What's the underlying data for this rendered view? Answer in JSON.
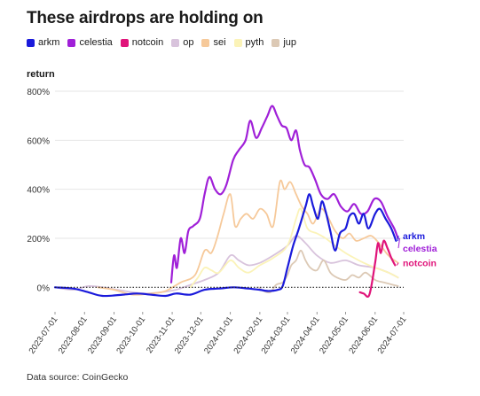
{
  "title": "These airdrops are holding on",
  "ylabel": "return",
  "source": "Data source: CoinGecko",
  "colors": {
    "arkm": "#1a1adb",
    "celestia": "#a020d8",
    "notcoin": "#e0147a",
    "op": "#d8c3dc",
    "sei": "#f6c99a",
    "pyth": "#fbf3b8",
    "jup": "#dcc9b5"
  },
  "legend": [
    {
      "key": "arkm",
      "label": "arkm"
    },
    {
      "key": "celestia",
      "label": "celestia"
    },
    {
      "key": "notcoin",
      "label": "notcoin"
    },
    {
      "key": "op",
      "label": "op"
    },
    {
      "key": "sei",
      "label": "sei"
    },
    {
      "key": "pyth",
      "label": "pyth"
    },
    {
      "key": "jup",
      "label": "jup"
    }
  ],
  "chart_data": {
    "type": "line",
    "title": "These airdrops are holding on",
    "xlabel": "",
    "ylabel": "return",
    "ylim": [
      -100,
      800
    ],
    "yticks": [
      0,
      200,
      400,
      600,
      800
    ],
    "ytick_labels": [
      "0%",
      "200%",
      "400%",
      "600%",
      "800%"
    ],
    "xticks": [
      "2023-07-01",
      "2023-08-01",
      "2023-09-01",
      "2023-10-01",
      "2023-11-01",
      "2023-12-01",
      "2024-01-01",
      "2024-02-01",
      "2024-03-01",
      "2024-04-01",
      "2024-05-01",
      "2024-06-01",
      "2024-07-01"
    ],
    "series": [
      {
        "name": "arkm",
        "end_label": "arkm",
        "points": [
          [
            "2023-07-01",
            0
          ],
          [
            "2023-07-20",
            -5
          ],
          [
            "2023-08-05",
            -20
          ],
          [
            "2023-08-20",
            -35
          ],
          [
            "2023-09-10",
            -30
          ],
          [
            "2023-09-25",
            -25
          ],
          [
            "2023-10-10",
            -30
          ],
          [
            "2023-10-25",
            -35
          ],
          [
            "2023-11-05",
            -25
          ],
          [
            "2023-11-20",
            -30
          ],
          [
            "2023-12-05",
            -10
          ],
          [
            "2023-12-20",
            -5
          ],
          [
            "2024-01-05",
            0
          ],
          [
            "2024-01-20",
            -5
          ],
          [
            "2024-02-01",
            -10
          ],
          [
            "2024-02-10",
            -15
          ],
          [
            "2024-02-20",
            -10
          ],
          [
            "2024-02-25",
            5
          ],
          [
            "2024-03-01",
            80
          ],
          [
            "2024-03-07",
            170
          ],
          [
            "2024-03-13",
            240
          ],
          [
            "2024-03-20",
            330
          ],
          [
            "2024-03-24",
            380
          ],
          [
            "2024-03-28",
            330
          ],
          [
            "2024-04-02",
            280
          ],
          [
            "2024-04-06",
            350
          ],
          [
            "2024-04-10",
            310
          ],
          [
            "2024-04-15",
            230
          ],
          [
            "2024-04-20",
            150
          ],
          [
            "2024-04-25",
            220
          ],
          [
            "2024-05-01",
            240
          ],
          [
            "2024-05-05",
            290
          ],
          [
            "2024-05-10",
            300
          ],
          [
            "2024-05-15",
            260
          ],
          [
            "2024-05-20",
            300
          ],
          [
            "2024-05-25",
            240
          ],
          [
            "2024-06-01",
            300
          ],
          [
            "2024-06-06",
            320
          ],
          [
            "2024-06-12",
            280
          ],
          [
            "2024-06-18",
            240
          ],
          [
            "2024-06-23",
            190
          ]
        ]
      },
      {
        "name": "celestia",
        "end_label": "celestia",
        "points": [
          [
            "2023-10-31",
            20
          ],
          [
            "2023-11-03",
            130
          ],
          [
            "2023-11-06",
            80
          ],
          [
            "2023-11-10",
            200
          ],
          [
            "2023-11-14",
            140
          ],
          [
            "2023-11-18",
            230
          ],
          [
            "2023-11-23",
            250
          ],
          [
            "2023-11-30",
            280
          ],
          [
            "2023-12-05",
            380
          ],
          [
            "2023-12-10",
            450
          ],
          [
            "2023-12-16",
            400
          ],
          [
            "2023-12-22",
            380
          ],
          [
            "2023-12-28",
            420
          ],
          [
            "2024-01-04",
            520
          ],
          [
            "2024-01-10",
            560
          ],
          [
            "2024-01-17",
            600
          ],
          [
            "2024-01-22",
            680
          ],
          [
            "2024-01-28",
            610
          ],
          [
            "2024-02-03",
            650
          ],
          [
            "2024-02-09",
            700
          ],
          [
            "2024-02-14",
            740
          ],
          [
            "2024-02-19",
            700
          ],
          [
            "2024-02-24",
            660
          ],
          [
            "2024-02-29",
            650
          ],
          [
            "2024-03-05",
            600
          ],
          [
            "2024-03-10",
            640
          ],
          [
            "2024-03-14",
            560
          ],
          [
            "2024-03-19",
            500
          ],
          [
            "2024-03-24",
            490
          ],
          [
            "2024-03-30",
            440
          ],
          [
            "2024-04-05",
            380
          ],
          [
            "2024-04-12",
            360
          ],
          [
            "2024-04-19",
            380
          ],
          [
            "2024-04-26",
            330
          ],
          [
            "2024-05-03",
            310
          ],
          [
            "2024-05-10",
            340
          ],
          [
            "2024-05-17",
            300
          ],
          [
            "2024-05-24",
            310
          ],
          [
            "2024-05-31",
            360
          ],
          [
            "2024-06-07",
            350
          ],
          [
            "2024-06-14",
            290
          ],
          [
            "2024-06-21",
            240
          ],
          [
            "2024-06-25",
            200
          ]
        ]
      },
      {
        "name": "notcoin",
        "end_label": "notcoin",
        "points": [
          [
            "2024-05-16",
            -20
          ],
          [
            "2024-05-20",
            -25
          ],
          [
            "2024-05-26",
            -30
          ],
          [
            "2024-06-01",
            100
          ],
          [
            "2024-06-04",
            180
          ],
          [
            "2024-06-07",
            140
          ],
          [
            "2024-06-10",
            190
          ],
          [
            "2024-06-14",
            160
          ],
          [
            "2024-06-18",
            120
          ],
          [
            "2024-06-22",
            90
          ]
        ]
      },
      {
        "name": "op",
        "points": [
          [
            "2023-07-01",
            0
          ],
          [
            "2023-07-20",
            -10
          ],
          [
            "2023-08-05",
            5
          ],
          [
            "2023-08-20",
            0
          ],
          [
            "2023-09-05",
            -10
          ],
          [
            "2023-09-20",
            -20
          ],
          [
            "2023-10-05",
            -25
          ],
          [
            "2023-10-20",
            -20
          ],
          [
            "2023-11-05",
            -10
          ],
          [
            "2023-11-20",
            10
          ],
          [
            "2023-12-05",
            30
          ],
          [
            "2023-12-20",
            60
          ],
          [
            "2024-01-01",
            130
          ],
          [
            "2024-01-10",
            110
          ],
          [
            "2024-01-20",
            90
          ],
          [
            "2024-02-01",
            100
          ],
          [
            "2024-02-15",
            130
          ],
          [
            "2024-03-01",
            170
          ],
          [
            "2024-03-10",
            210
          ],
          [
            "2024-03-20",
            180
          ],
          [
            "2024-04-01",
            130
          ],
          [
            "2024-04-15",
            100
          ],
          [
            "2024-05-01",
            110
          ],
          [
            "2024-05-15",
            90
          ],
          [
            "2024-06-01",
            80
          ],
          [
            "2024-06-15",
            60
          ],
          [
            "2024-06-25",
            40
          ]
        ]
      },
      {
        "name": "sei",
        "points": [
          [
            "2023-08-15",
            0
          ],
          [
            "2023-09-01",
            -10
          ],
          [
            "2023-09-20",
            -30
          ],
          [
            "2023-10-10",
            -25
          ],
          [
            "2023-10-25",
            -15
          ],
          [
            "2023-11-10",
            20
          ],
          [
            "2023-11-25",
            50
          ],
          [
            "2023-12-05",
            150
          ],
          [
            "2023-12-12",
            140
          ],
          [
            "2023-12-18",
            200
          ],
          [
            "2023-12-25",
            300
          ],
          [
            "2024-01-01",
            380
          ],
          [
            "2024-01-06",
            250
          ],
          [
            "2024-01-12",
            280
          ],
          [
            "2024-01-18",
            300
          ],
          [
            "2024-01-25",
            280
          ],
          [
            "2024-02-01",
            320
          ],
          [
            "2024-02-08",
            300
          ],
          [
            "2024-02-15",
            250
          ],
          [
            "2024-02-22",
            430
          ],
          [
            "2024-02-27",
            400
          ],
          [
            "2024-03-04",
            430
          ],
          [
            "2024-03-10",
            380
          ],
          [
            "2024-03-16",
            330
          ],
          [
            "2024-03-22",
            300
          ],
          [
            "2024-03-28",
            260
          ],
          [
            "2024-04-05",
            320
          ],
          [
            "2024-04-12",
            290
          ],
          [
            "2024-04-20",
            230
          ],
          [
            "2024-04-28",
            200
          ],
          [
            "2024-05-05",
            220
          ],
          [
            "2024-05-12",
            190
          ],
          [
            "2024-05-20",
            200
          ],
          [
            "2024-05-28",
            210
          ],
          [
            "2024-06-05",
            180
          ],
          [
            "2024-06-15",
            130
          ],
          [
            "2024-06-25",
            100
          ]
        ]
      },
      {
        "name": "pyth",
        "points": [
          [
            "2023-11-20",
            0
          ],
          [
            "2023-11-28",
            40
          ],
          [
            "2023-12-05",
            80
          ],
          [
            "2023-12-12",
            70
          ],
          [
            "2023-12-20",
            60
          ],
          [
            "2024-01-01",
            110
          ],
          [
            "2024-01-10",
            80
          ],
          [
            "2024-01-20",
            60
          ],
          [
            "2024-02-01",
            90
          ],
          [
            "2024-02-15",
            120
          ],
          [
            "2024-03-01",
            170
          ],
          [
            "2024-03-10",
            280
          ],
          [
            "2024-03-15",
            320
          ],
          [
            "2024-03-22",
            240
          ],
          [
            "2024-04-01",
            220
          ],
          [
            "2024-04-10",
            200
          ],
          [
            "2024-04-20",
            170
          ],
          [
            "2024-05-01",
            140
          ],
          [
            "2024-05-10",
            120
          ],
          [
            "2024-05-20",
            100
          ],
          [
            "2024-06-01",
            80
          ],
          [
            "2024-06-15",
            60
          ],
          [
            "2024-06-25",
            40
          ]
        ]
      },
      {
        "name": "jup",
        "points": [
          [
            "2024-01-31",
            0
          ],
          [
            "2024-02-05",
            -15
          ],
          [
            "2024-02-12",
            -20
          ],
          [
            "2024-02-18",
            10
          ],
          [
            "2024-02-25",
            20
          ],
          [
            "2024-03-01",
            50
          ],
          [
            "2024-03-05",
            90
          ],
          [
            "2024-03-10",
            110
          ],
          [
            "2024-03-15",
            150
          ],
          [
            "2024-03-20",
            110
          ],
          [
            "2024-03-25",
            80
          ],
          [
            "2024-04-01",
            70
          ],
          [
            "2024-04-08",
            110
          ],
          [
            "2024-04-15",
            60
          ],
          [
            "2024-04-22",
            40
          ],
          [
            "2024-05-01",
            30
          ],
          [
            "2024-05-08",
            50
          ],
          [
            "2024-05-15",
            40
          ],
          [
            "2024-05-22",
            60
          ],
          [
            "2024-06-01",
            30
          ],
          [
            "2024-06-10",
            20
          ],
          [
            "2024-06-20",
            10
          ],
          [
            "2024-06-25",
            5
          ]
        ]
      }
    ]
  }
}
